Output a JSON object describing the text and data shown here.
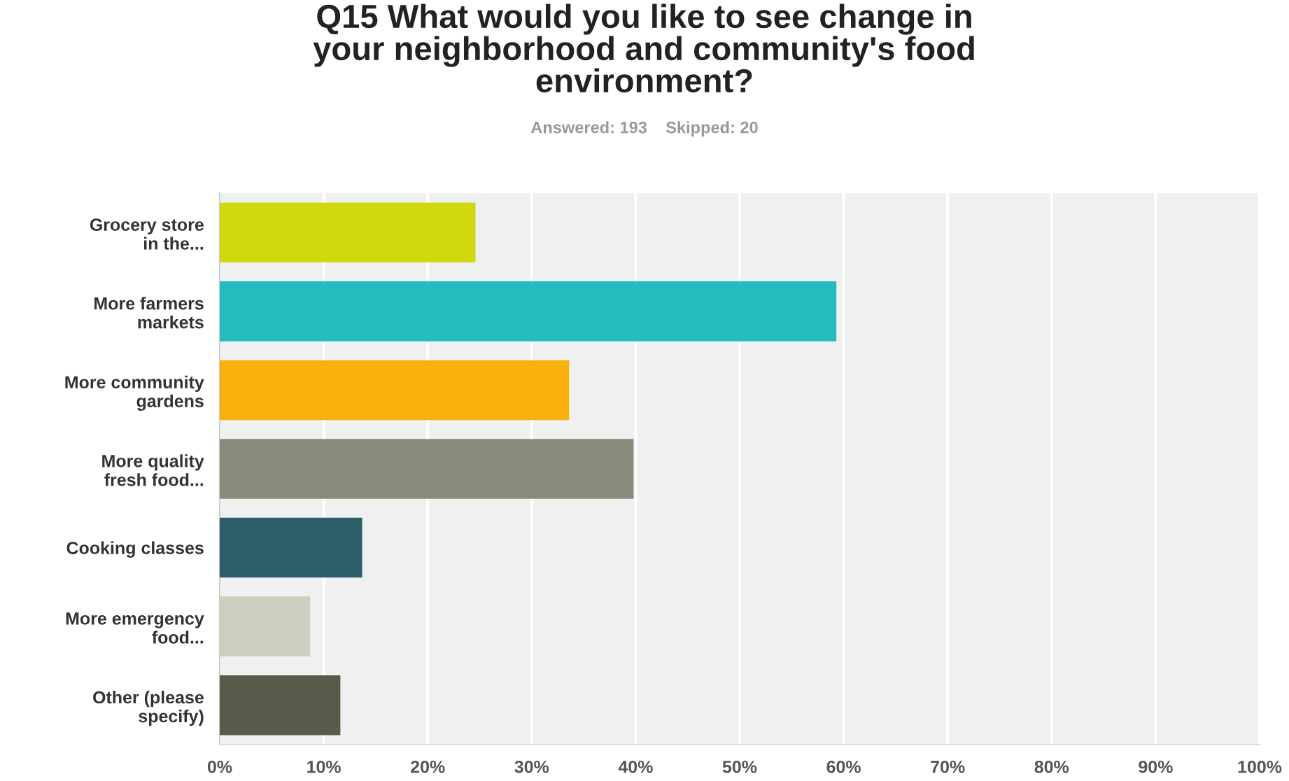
{
  "chart_data": {
    "type": "bar",
    "orientation": "horizontal",
    "title": "Q15 What would you like to see change in\nyour neighborhood and community's food\nenvironment?",
    "subtitle": "Answered: 193    Skipped: 20",
    "categories": [
      "Grocery store\nin the...",
      "More farmers\nmarkets",
      "More community\ngardens",
      "More quality\nfresh food...",
      "Cooking classes",
      "More emergency\nfood...",
      "Other (please\nspecify)"
    ],
    "values": [
      24.6,
      59.3,
      33.6,
      39.8,
      13.7,
      8.7,
      11.6
    ],
    "colors": [
      "#d0d80e",
      "#25bcc0",
      "#f8b00c",
      "#8a8a7a",
      "#2c5e6a",
      "#cfcfbf",
      "#5a5a4a"
    ],
    "xlim": [
      0,
      100
    ],
    "xticks": [
      {
        "value": 0,
        "label": "0%"
      },
      {
        "value": 10,
        "label": "10%"
      },
      {
        "value": 20,
        "label": "20%"
      },
      {
        "value": 30,
        "label": "30%"
      },
      {
        "value": 40,
        "label": "40%"
      },
      {
        "value": 50,
        "label": "50%"
      },
      {
        "value": 60,
        "label": "60%"
      },
      {
        "value": 70,
        "label": "70%"
      },
      {
        "value": 80,
        "label": "80%"
      },
      {
        "value": 90,
        "label": "90%"
      },
      {
        "value": 100,
        "label": "100%"
      }
    ],
    "grid": "x",
    "legend": false
  }
}
